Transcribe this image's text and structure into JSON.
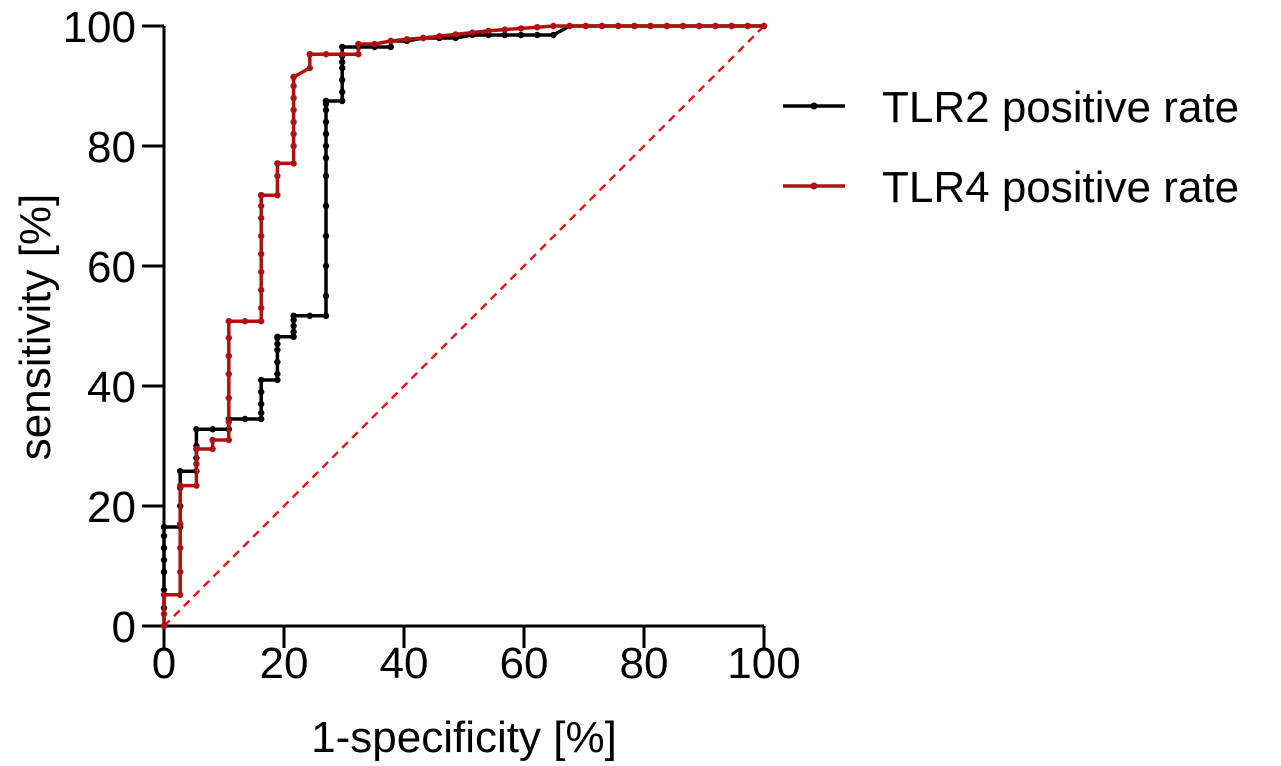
{
  "chart_data": {
    "type": "line",
    "title": "",
    "xlabel": "1-specificity [%]",
    "ylabel": "sensitivity [%]",
    "xlim": [
      0,
      100
    ],
    "ylim": [
      0,
      100
    ],
    "xticks": [
      0,
      20,
      40,
      60,
      80,
      100
    ],
    "yticks": [
      0,
      20,
      40,
      60,
      80,
      100
    ],
    "xtick_labels": [
      "0",
      "20",
      "40",
      "60",
      "80",
      "100"
    ],
    "ytick_labels": [
      "0",
      "20",
      "40",
      "60",
      "80",
      "100"
    ],
    "grid": false,
    "legend_position": "right",
    "reference_line": {
      "name": "chance diagonal",
      "x": [
        0,
        100
      ],
      "y": [
        0,
        100
      ],
      "color": "#e8191b",
      "style": "dashed"
    },
    "series": [
      {
        "name": "TLR2 positive rate",
        "color": "#000000",
        "x": [
          0,
          0,
          0,
          0,
          0,
          0,
          0,
          0,
          0,
          2.7,
          2.7,
          2.7,
          2.7,
          5.4,
          5.4,
          5.4,
          5.4,
          8.1,
          10.8,
          10.8,
          13.5,
          16.2,
          16.2,
          16.2,
          16.2,
          16.2,
          18.9,
          18.9,
          18.9,
          18.9,
          18.9,
          18.9,
          18.9,
          21.6,
          21.6,
          21.6,
          21.6,
          21.6,
          24.3,
          27.0,
          27.0,
          27.0,
          27.0,
          27.0,
          27.0,
          27.0,
          27.0,
          27.0,
          27.0,
          27.0,
          27.0,
          27.0,
          27.0,
          29.7,
          29.7,
          29.7,
          29.7,
          29.7,
          29.7,
          29.7,
          32.4,
          35.1,
          37.8,
          37.8,
          40.5,
          43.2,
          45.9,
          48.6,
          51.4,
          54.1,
          56.8,
          59.5,
          62.2,
          64.9,
          67.6,
          70.3,
          73.0,
          75.7,
          78.4,
          81.1,
          83.8,
          86.5,
          89.2,
          91.9,
          94.6,
          97.3,
          100
        ],
        "y": [
          0,
          3,
          6,
          9,
          11,
          13,
          15,
          16.5,
          16.5,
          16.5,
          20,
          23,
          25.8,
          25.8,
          28,
          30,
          32.8,
          32.8,
          32.8,
          34.5,
          34.5,
          34.5,
          35.5,
          37,
          39,
          41,
          41,
          42,
          44,
          46,
          47,
          48,
          48.2,
          48.2,
          49,
          50,
          51,
          51.7,
          51.7,
          51.7,
          55,
          60,
          65,
          70,
          75,
          78,
          80,
          82,
          84,
          86,
          87,
          87.5,
          87.5,
          87.5,
          89,
          91,
          93,
          94,
          95,
          96.5,
          96.5,
          96.5,
          96.5,
          97.5,
          97.5,
          98,
          98,
          98,
          98.5,
          98.5,
          98.5,
          98.5,
          98.5,
          98.5,
          100,
          100,
          100,
          100,
          100,
          100,
          100,
          100,
          100,
          100,
          100,
          100,
          100
        ]
      },
      {
        "name": "TLR4 positive rate",
        "color": "#b01010",
        "x": [
          0,
          0,
          0,
          2.7,
          2.7,
          2.7,
          2.7,
          2.7,
          5.4,
          5.4,
          5.4,
          5.4,
          8.1,
          8.1,
          10.8,
          10.8,
          10.8,
          10.8,
          10.8,
          10.8,
          10.8,
          13.5,
          16.2,
          16.2,
          16.2,
          16.2,
          16.2,
          16.2,
          16.2,
          16.2,
          16.2,
          16.2,
          16.2,
          18.9,
          18.9,
          18.9,
          18.9,
          21.6,
          21.6,
          21.6,
          21.6,
          21.6,
          21.6,
          21.6,
          21.6,
          21.6,
          21.6,
          21.6,
          24.3,
          24.3,
          24.3,
          27.0,
          29.7,
          32.4,
          32.4,
          35.1,
          37.8,
          40.5,
          43.2,
          45.9,
          48.6,
          51.4,
          54.1,
          56.8,
          59.5,
          62.2,
          64.9,
          67.6,
          70.3,
          73.0,
          75.7,
          78.4,
          81.1,
          83.8,
          86.5,
          89.2,
          91.9,
          94.6,
          97.3,
          100
        ],
        "y": [
          0,
          2,
          5.2,
          5.2,
          9,
          13,
          17,
          23.4,
          23.4,
          27,
          29.5,
          29.5,
          29.5,
          31,
          31,
          34,
          38,
          42,
          45,
          48,
          50.8,
          50.8,
          50.8,
          53,
          56,
          59,
          62,
          65,
          68,
          70,
          71.8,
          71.8,
          71.8,
          71.8,
          75,
          77.1,
          77.1,
          77.1,
          80,
          82,
          84,
          86,
          88,
          90,
          91.5,
          91.5,
          91.5,
          91.5,
          93,
          95.3,
          95.3,
          95.3,
          95.3,
          95.3,
          97,
          97,
          97.5,
          97.8,
          98,
          98.3,
          98.6,
          98.9,
          99.2,
          99.4,
          99.6,
          99.8,
          100,
          100,
          100,
          100,
          100,
          100,
          100,
          100,
          100,
          100,
          100,
          100,
          100,
          100
        ]
      }
    ]
  }
}
